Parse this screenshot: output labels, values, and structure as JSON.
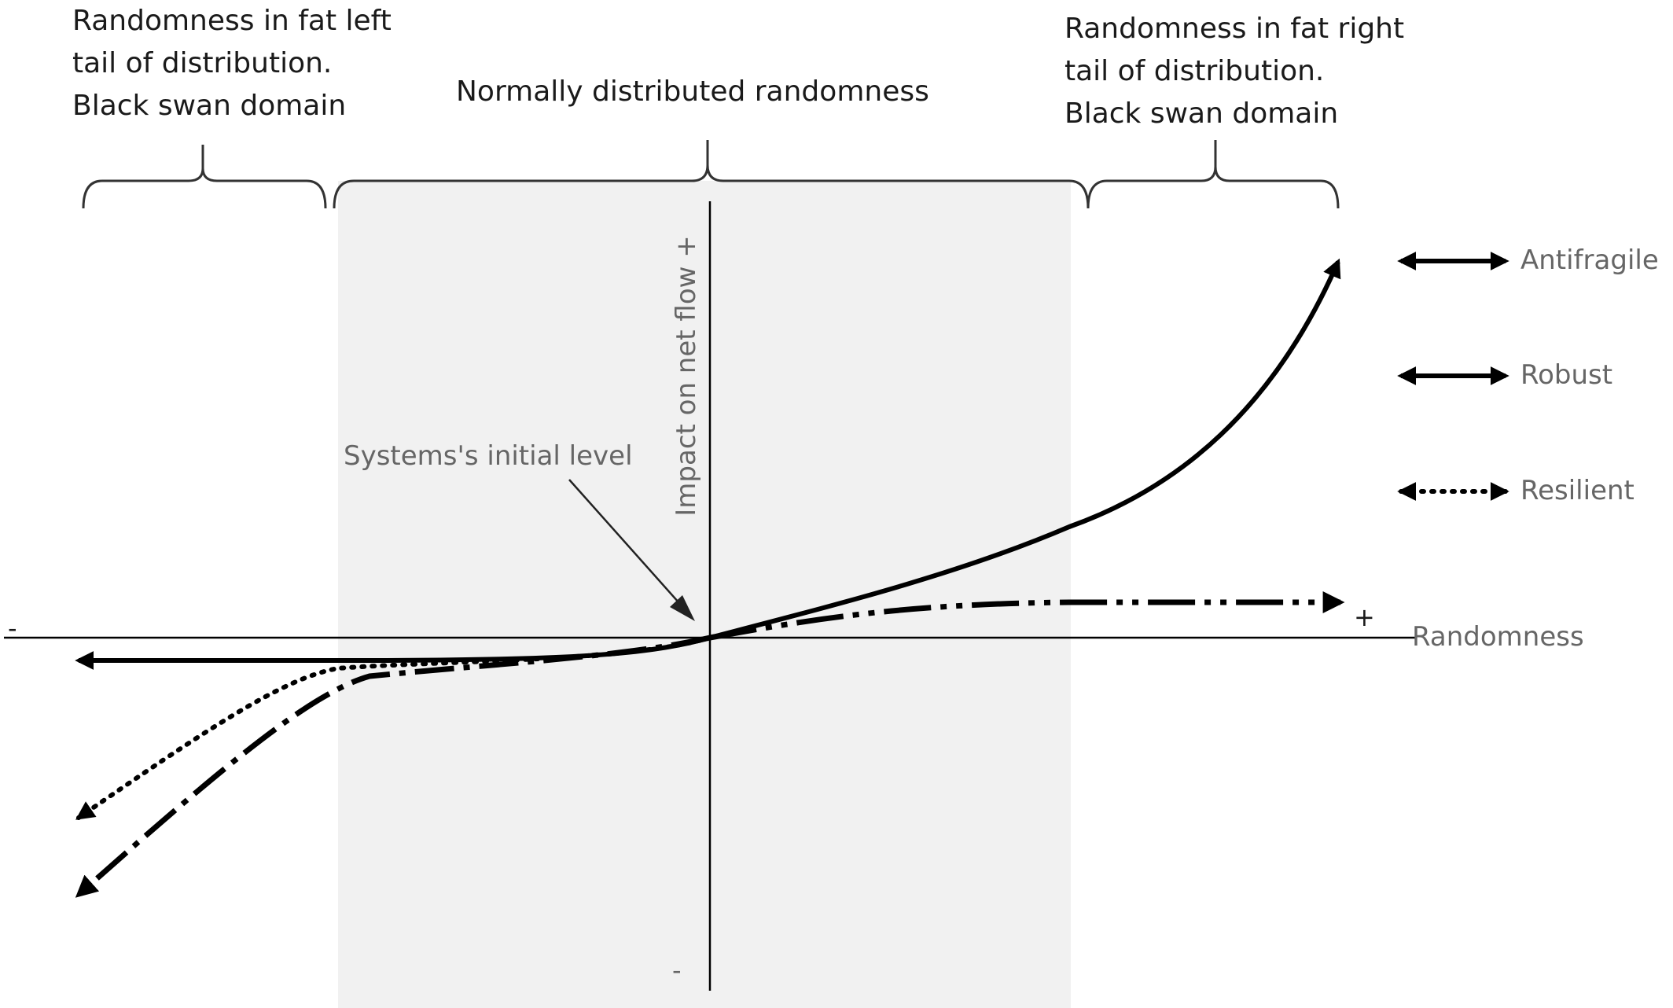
{
  "regions": {
    "left_tail": [
      "Randomness in fat left",
      "tail of distribution.",
      "Black swan domain"
    ],
    "center": "Normally distributed randomness",
    "right_tail": [
      "Randomness in fat right",
      "tail of distribution.",
      "Black swan domain"
    ]
  },
  "axes": {
    "y_label": "Impact on net flow",
    "y_plus": "+",
    "y_minus": "-",
    "x_label": "Randomness",
    "x_plus": "+",
    "x_minus": "-"
  },
  "annotation": "Systems's initial level",
  "legend": [
    {
      "label": "Antifragile",
      "line_style": "solid"
    },
    {
      "label": "Robust",
      "line_style": "solid"
    },
    {
      "label": "Resilient",
      "line_style": "dotted"
    }
  ],
  "colors": {
    "curves": "#000000",
    "axes": "#000000",
    "normal_region_fill": "#f1f1f1",
    "label_text": "#1a1a1a",
    "axis_text": "#666666"
  }
}
